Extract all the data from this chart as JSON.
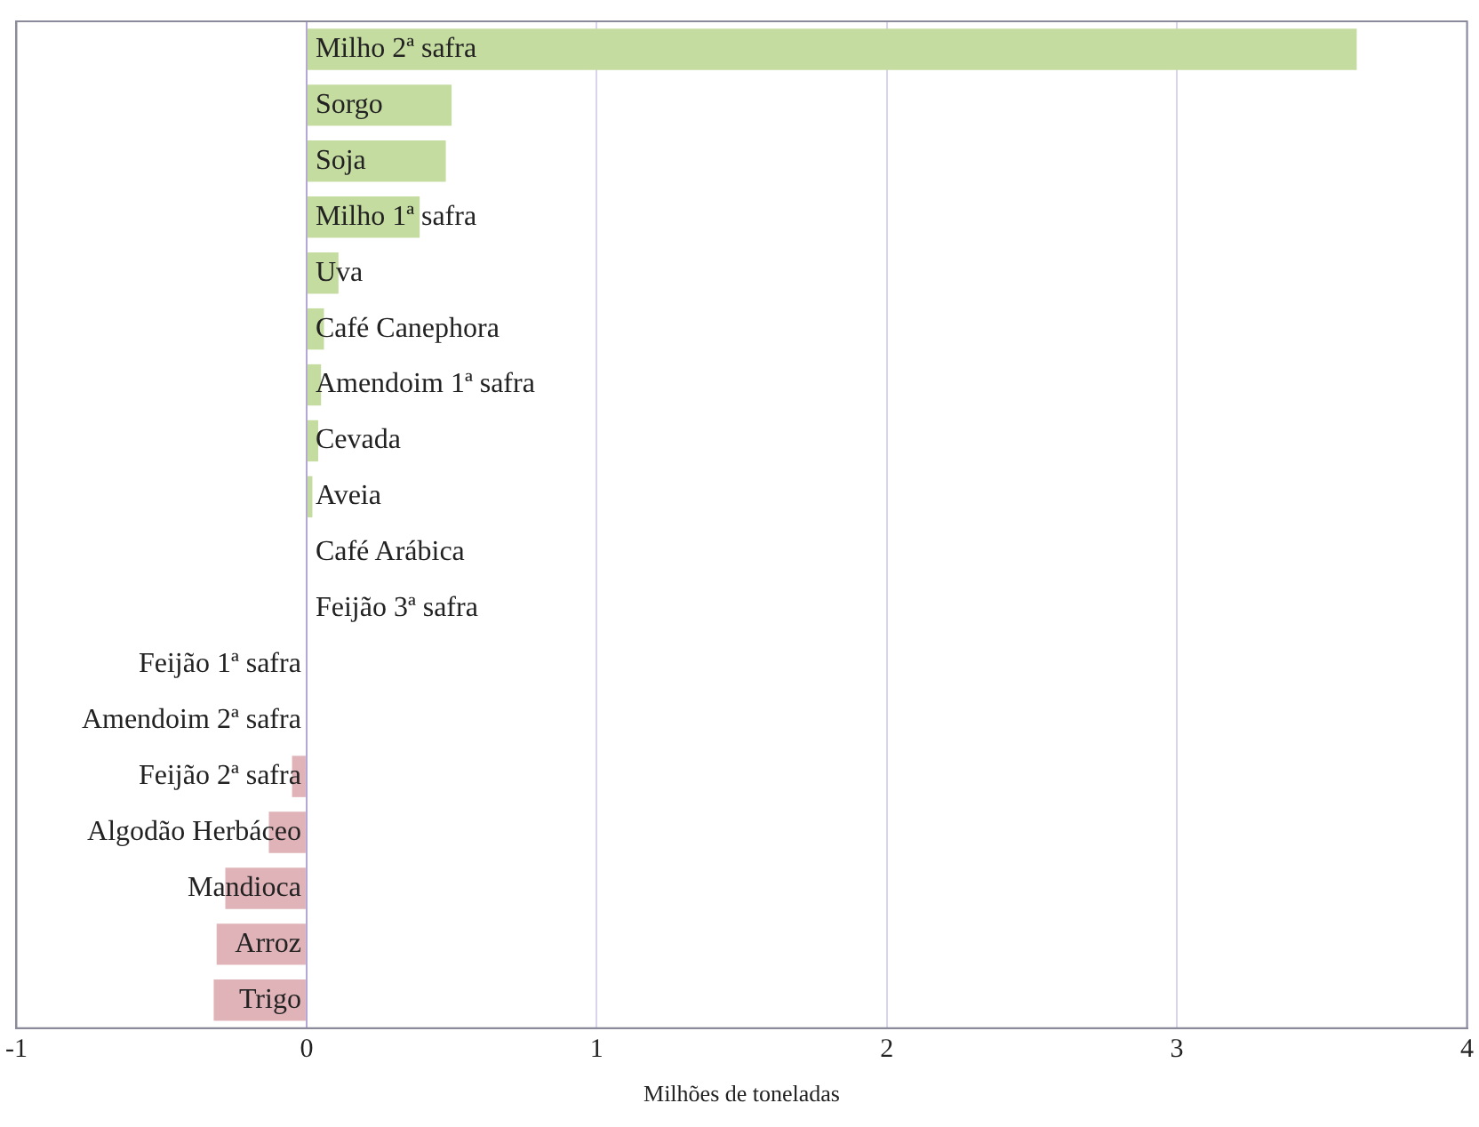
{
  "chart_data": {
    "type": "bar",
    "orientation": "horizontal",
    "xlabel": "Milhões de toneladas",
    "categories": [
      "Milho 2ª safra",
      "Sorgo",
      "Soja",
      "Milho 1ª safra",
      "Uva",
      "Café Canephora",
      "Amendoim 1ª safra",
      "Cevada",
      "Aveia",
      "Café Arábica",
      "Feijão 3ª safra",
      "Feijão 1ª safra",
      "Amendoim 2ª safra",
      "Feijão 2ª safra",
      "Algodão Herbáceo",
      "Mandioca",
      "Arroz",
      "Trigo"
    ],
    "values": [
      3.62,
      0.5,
      0.48,
      0.39,
      0.11,
      0.06,
      0.05,
      0.04,
      0.02,
      null,
      null,
      null,
      null,
      -0.05,
      -0.13,
      -0.28,
      -0.31,
      -0.32
    ],
    "colors": [
      "#c5dca0",
      "#c5dca0",
      "#c5dca0",
      "#c5dca0",
      "#c5dca0",
      "#c5dca0",
      "#c5dca0",
      "#c5dca0",
      "#c5dca0",
      "#c5dca0",
      "#c5dca0",
      "#dfb3b8",
      "#dfb3b8",
      "#dfb3b8",
      "#dfb3b8",
      "#dfb3b8",
      "#dfb3b8",
      "#dfb3b8"
    ],
    "xlim": [
      -1,
      4
    ],
    "xticks": [
      -1,
      0,
      1,
      2,
      3,
      4
    ],
    "grid": "x",
    "legend": false
  }
}
